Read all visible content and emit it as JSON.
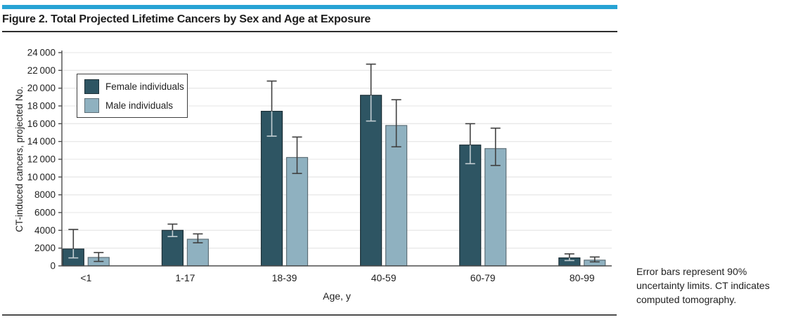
{
  "header": {
    "title": "Figure 2. Total Projected Lifetime Cancers by Sex and Age at Exposure"
  },
  "legend": {
    "items": [
      {
        "label": "Female individuals",
        "color": "#2e5563",
        "border": "#1d3038"
      },
      {
        "label": "Male individuals",
        "color": "#8fb1c0",
        "border": "#5f7078"
      }
    ]
  },
  "caption": {
    "lines": [
      "Error bars represent 90%",
      "uncertainty limits. CT indicates",
      "computed tomography."
    ]
  },
  "chart_data": {
    "type": "bar",
    "title": "Figure 2. Total Projected Lifetime Cancers by Sex and Age at Exposure",
    "categories": [
      "<1",
      "1-17",
      "18-39",
      "40-59",
      "60-79",
      "80-99"
    ],
    "series": [
      {
        "name": "Female individuals",
        "color": "#2e5563",
        "border": "#1d3038",
        "values": [
          1900,
          4000,
          17400,
          19200,
          13600,
          900
        ],
        "error_low": [
          900,
          3300,
          14600,
          16300,
          11500,
          600
        ],
        "error_high": [
          4100,
          4700,
          20800,
          22700,
          16000,
          1350
        ]
      },
      {
        "name": "Male individuals",
        "color": "#8fb1c0",
        "border": "#5f7078",
        "values": [
          950,
          3000,
          12200,
          15800,
          13200,
          650
        ],
        "error_low": [
          500,
          2600,
          10400,
          13400,
          11300,
          450
        ],
        "error_high": [
          1500,
          3600,
          14500,
          18700,
          15500,
          1000
        ]
      }
    ],
    "xlabel": "Age, y",
    "ylabel": "CT-induced cancers, projected No.",
    "ylim": [
      0,
      24000
    ],
    "ytick_step": 2000,
    "ytick_labels": [
      "0",
      "2000",
      "4000",
      "6000",
      "8000",
      "10 000",
      "12 000",
      "14 000",
      "16 000",
      "18 000",
      "20 000",
      "22 000",
      "24 000"
    ],
    "grid": true,
    "legend_position": "upper-left-inside",
    "error_note_visible": "Error bars represent 90% uncertainty limits."
  },
  "colors": {
    "accent": "#27a3d4",
    "grid": "#e9e9e9",
    "axis": "#4d4d4d",
    "error_dark": "#3f3f3f",
    "error_light": "#c3ced3",
    "text": "#1f1f1f"
  }
}
